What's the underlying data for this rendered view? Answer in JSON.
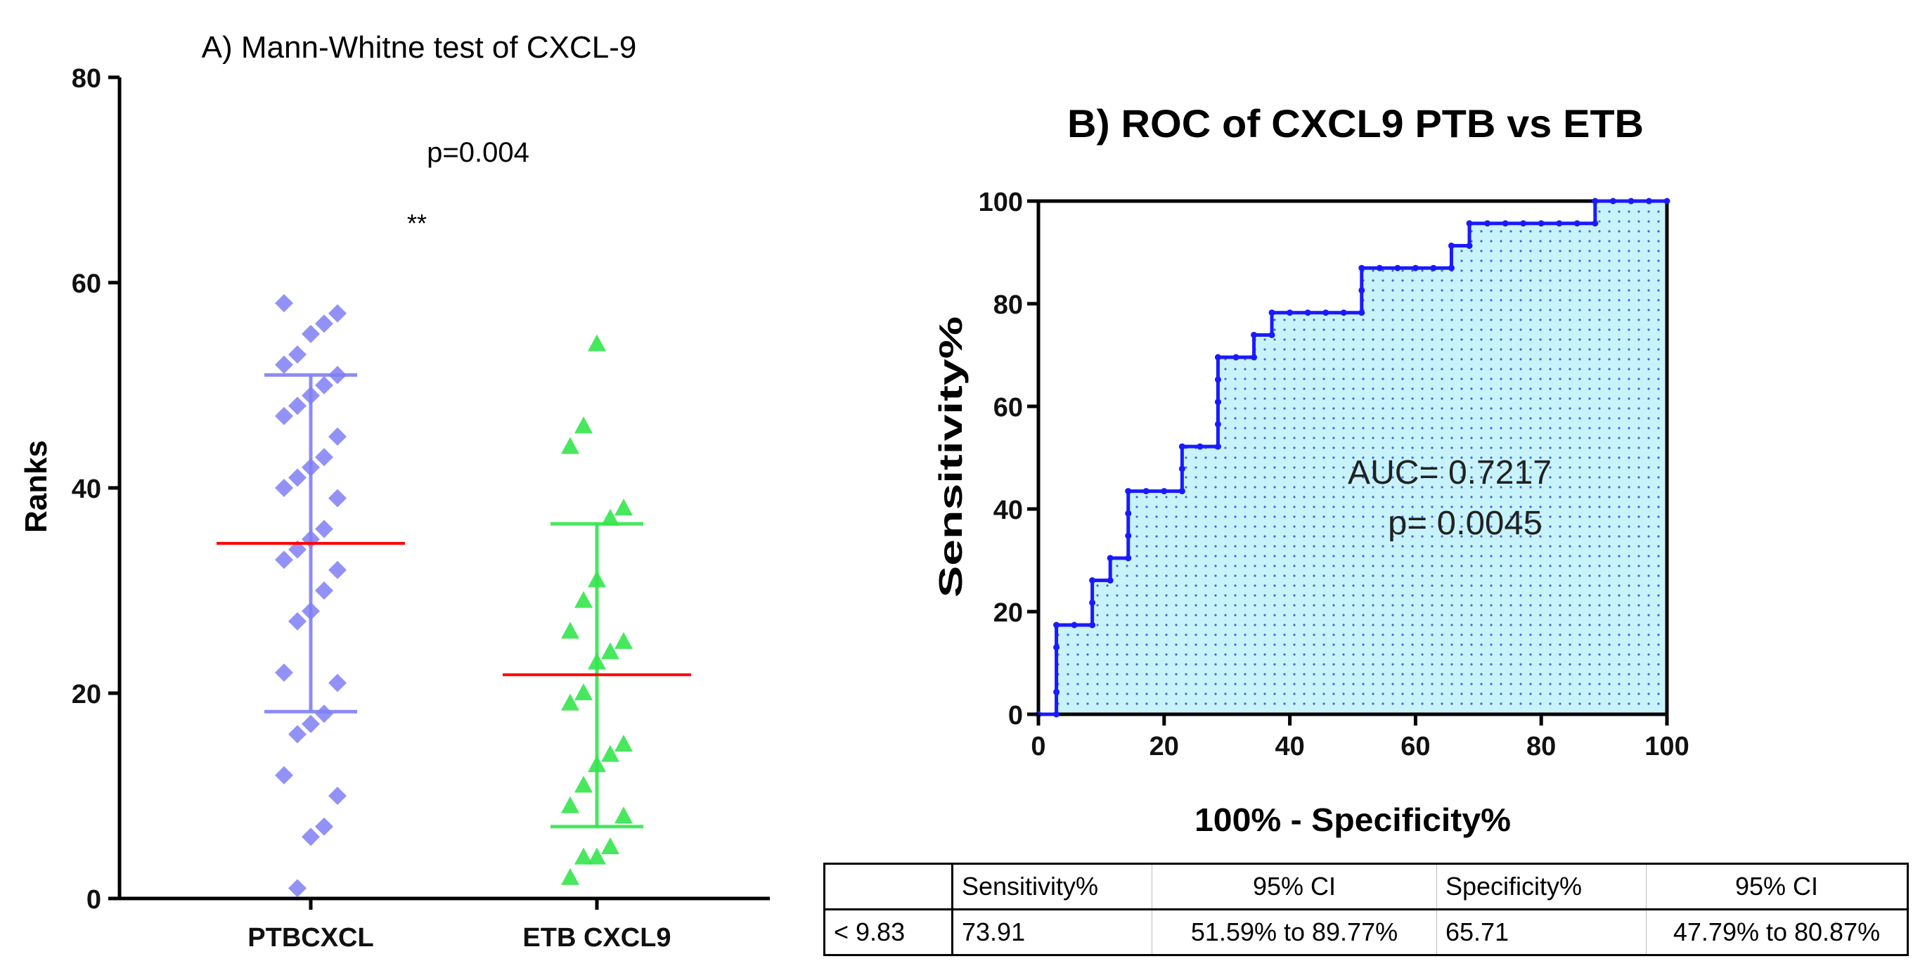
{
  "chart_data": [
    {
      "type": "scatter",
      "title": "A) Mann-Whitne test of CXCL-9",
      "xlabel": "",
      "ylabel": "Ranks",
      "ylim": [
        0,
        80
      ],
      "yticks": [
        "0",
        "20",
        "40",
        "60",
        "80"
      ],
      "categories": [
        "PTBCXCL",
        "ETB CXCL9"
      ],
      "annotations": {
        "p_value": "p=0.004",
        "significance": "**"
      },
      "series": [
        {
          "name": "PTBCXCL",
          "color": "#7f7ff5",
          "marker": "diamond",
          "values": [
            58,
            57,
            56,
            55,
            53,
            52,
            51,
            50,
            49,
            48,
            47,
            45,
            43,
            42,
            41,
            40,
            39,
            36,
            35,
            34,
            33,
            32,
            30,
            28,
            27,
            22,
            21,
            18,
            17,
            16,
            12,
            10,
            7,
            6,
            1
          ],
          "center": 34.6,
          "upper": 51,
          "lower": 18.2
        },
        {
          "name": "ETB CXCL9",
          "color": "#33e64d",
          "marker": "triangle",
          "values": [
            54,
            46,
            44,
            38,
            37,
            31,
            29,
            26,
            25,
            24,
            23,
            20,
            19,
            15,
            14,
            13,
            11,
            9,
            8,
            5,
            4,
            4,
            2
          ],
          "center": 21.8,
          "upper": 36.5,
          "lower": 7
        }
      ],
      "center_line_color": "#ff0000"
    },
    {
      "type": "line",
      "title": "B) ROC of CXCL9 PTB vs ETB",
      "xlabel": "100% - Specificity%",
      "ylabel": "Sensitivity%",
      "xlim": [
        0,
        100
      ],
      "ylim": [
        0,
        100
      ],
      "xticks": [
        "0",
        "20",
        "40",
        "60",
        "80",
        "100"
      ],
      "yticks": [
        "0",
        "20",
        "40",
        "60",
        "80",
        "100"
      ],
      "annotations": {
        "auc": "AUC= 0.7217",
        "p_value": "p= 0.0045"
      },
      "line_color": "#1a1aff",
      "fill_color": "#c9f3fa",
      "x": [
        0,
        2.86,
        2.86,
        2.86,
        2.86,
        5.71,
        8.57,
        8.57,
        8.57,
        11.43,
        11.43,
        14.29,
        14.29,
        14.29,
        14.29,
        17.14,
        20,
        22.86,
        22.86,
        22.86,
        25.71,
        28.57,
        28.57,
        28.57,
        28.57,
        28.57,
        31.43,
        34.29,
        34.29,
        37.14,
        37.14,
        40,
        42.86,
        45.71,
        48.57,
        51.43,
        51.43,
        51.43,
        54.29,
        57.14,
        60,
        62.86,
        65.71,
        65.71,
        68.57,
        68.57,
        71.43,
        74.29,
        77.14,
        80,
        82.86,
        85.71,
        88.57,
        88.57,
        91.43,
        94.29,
        97.14,
        100
      ],
      "y": [
        0,
        0,
        4.35,
        13.04,
        17.39,
        17.39,
        17.39,
        21.74,
        26.09,
        26.09,
        30.43,
        30.43,
        34.78,
        39.13,
        43.48,
        43.48,
        43.48,
        43.48,
        47.83,
        52.17,
        52.17,
        52.17,
        56.52,
        60.87,
        65.22,
        69.57,
        69.57,
        69.57,
        73.91,
        73.91,
        78.26,
        78.26,
        78.26,
        78.26,
        78.26,
        78.26,
        82.61,
        86.96,
        86.96,
        86.96,
        86.96,
        86.96,
        86.96,
        91.3,
        91.3,
        95.65,
        95.65,
        95.65,
        95.65,
        95.65,
        95.65,
        95.65,
        95.65,
        100,
        100,
        100,
        100,
        100
      ]
    }
  ],
  "table": {
    "headers": [
      "",
      "Sensitivity%",
      "95% CI",
      "Specificity%",
      "95% CI"
    ],
    "rows": [
      [
        "< 9.83",
        "73.91",
        "51.59% to 89.77%",
        "65.71",
        "47.79% to 80.87%"
      ]
    ]
  }
}
